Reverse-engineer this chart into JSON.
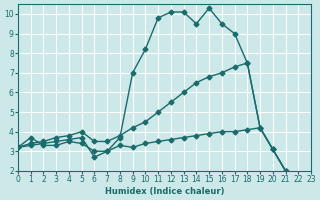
{
  "bg_color": "#cce8e8",
  "grid_color": "#ffffff",
  "line_color": "#1a6b6b",
  "xlabel": "Humidex (Indice chaleur)",
  "xlim": [
    0,
    23
  ],
  "ylim": [
    2,
    10.5
  ],
  "yticks": [
    2,
    3,
    4,
    5,
    6,
    7,
    8,
    9,
    10
  ],
  "xticks": [
    0,
    1,
    2,
    3,
    4,
    5,
    6,
    7,
    8,
    9,
    10,
    11,
    12,
    13,
    14,
    15,
    16,
    17,
    18,
    19,
    20,
    21,
    22,
    23
  ],
  "line1_x": [
    0,
    1,
    2,
    3,
    4,
    5,
    6,
    7,
    8,
    9,
    10,
    11,
    12,
    13,
    14,
    15,
    16,
    17,
    18,
    19,
    20,
    21,
    22,
    23
  ],
  "line1_y": [
    3.2,
    3.7,
    3.3,
    3.3,
    3.5,
    3.4,
    3.0,
    3.0,
    3.7,
    7.0,
    8.2,
    9.8,
    10.1,
    10.1,
    9.5,
    10.3,
    9.5,
    9.0,
    7.5,
    4.2,
    3.1,
    2.0,
    1.8,
    1.75
  ],
  "line2_x": [
    0,
    1,
    2,
    3,
    4,
    5,
    6,
    7,
    8,
    9,
    10,
    11,
    12,
    13,
    14,
    15,
    16,
    17,
    18,
    19,
    20,
    21,
    22,
    23
  ],
  "line2_y": [
    3.2,
    3.4,
    3.5,
    3.7,
    3.8,
    4.0,
    3.5,
    3.5,
    3.8,
    4.2,
    4.5,
    5.0,
    5.5,
    6.0,
    6.5,
    6.8,
    7.0,
    7.3,
    7.5,
    4.2,
    3.1,
    2.0,
    1.8,
    1.75
  ],
  "line3_x": [
    0,
    1,
    2,
    3,
    4,
    5,
    6,
    7,
    8,
    9,
    10,
    11,
    12,
    13,
    14,
    15,
    16,
    17,
    18,
    19,
    20,
    21,
    22,
    23
  ],
  "line3_y": [
    3.2,
    3.3,
    3.4,
    3.5,
    3.6,
    3.7,
    2.7,
    3.0,
    3.3,
    3.2,
    3.4,
    3.5,
    3.6,
    3.7,
    3.8,
    3.9,
    4.0,
    4.0,
    4.1,
    4.2,
    3.1,
    2.0,
    1.8,
    1.75
  ]
}
